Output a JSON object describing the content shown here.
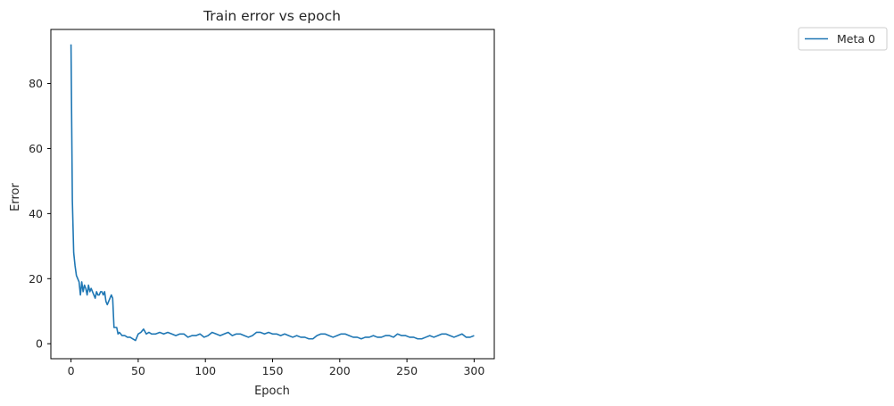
{
  "chart_data": {
    "type": "line",
    "title": "Train error vs epoch",
    "xlabel": "Epoch",
    "ylabel": "Error",
    "xlim": [
      -15,
      315
    ],
    "ylim": [
      -4.6,
      96.6
    ],
    "xticks": [
      0,
      50,
      100,
      150,
      200,
      250,
      300
    ],
    "yticks": [
      0,
      20,
      40,
      60,
      80
    ],
    "grid": false,
    "legend_position": "outside-top-right",
    "series": [
      {
        "name": "Meta 0",
        "color": "#1f77b4",
        "x": [
          0,
          1,
          2,
          3,
          4,
          5,
          6,
          7,
          8,
          9,
          10,
          11,
          12,
          13,
          14,
          15,
          16,
          17,
          18,
          19,
          20,
          21,
          22,
          23,
          24,
          25,
          26,
          27,
          28,
          29,
          30,
          31,
          32,
          33,
          34,
          35,
          36,
          37,
          38,
          40,
          42,
          44,
          46,
          48,
          50,
          52,
          54,
          56,
          58,
          60,
          63,
          66,
          69,
          72,
          75,
          78,
          81,
          84,
          87,
          90,
          93,
          96,
          99,
          102,
          105,
          108,
          111,
          114,
          117,
          120,
          123,
          126,
          129,
          132,
          135,
          138,
          141,
          144,
          147,
          150,
          153,
          156,
          159,
          162,
          165,
          168,
          171,
          174,
          177,
          180,
          183,
          186,
          189,
          192,
          195,
          198,
          201,
          204,
          207,
          210,
          213,
          216,
          219,
          222,
          225,
          228,
          231,
          234,
          237,
          240,
          243,
          246,
          249,
          252,
          255,
          258,
          261,
          264,
          267,
          270,
          273,
          276,
          279,
          282,
          285,
          288,
          291,
          294,
          297,
          300
        ],
        "y": [
          92,
          44,
          28,
          24,
          21,
          20,
          19,
          15,
          19,
          16,
          18,
          17,
          15,
          18,
          16,
          17,
          16,
          15,
          14,
          16,
          15,
          15,
          16,
          16,
          15,
          16,
          13,
          12,
          13,
          14,
          15,
          14,
          5,
          5,
          5,
          3,
          3.5,
          3,
          2.5,
          2.5,
          2,
          2,
          1.5,
          1,
          3,
          3.5,
          4.5,
          3,
          3.5,
          3,
          3,
          3.5,
          3,
          3.5,
          3,
          2.5,
          3,
          3,
          2,
          2.5,
          2.5,
          3,
          2,
          2.5,
          3.5,
          3,
          2.5,
          3,
          3.5,
          2.5,
          3,
          3,
          2.5,
          2,
          2.5,
          3.5,
          3.5,
          3,
          3.5,
          3,
          3,
          2.5,
          3,
          2.5,
          2,
          2.5,
          2,
          2,
          1.5,
          1.5,
          2.5,
          3,
          3,
          2.5,
          2,
          2.5,
          3,
          3,
          2.5,
          2,
          2,
          1.5,
          2,
          2,
          2.5,
          2,
          2,
          2.5,
          2.5,
          2,
          3,
          2.5,
          2.5,
          2,
          2,
          1.5,
          1.5,
          2,
          2.5,
          2,
          2.5,
          3,
          3,
          2.5,
          2,
          2.5,
          3,
          2,
          2,
          2.5
        ]
      }
    ]
  }
}
